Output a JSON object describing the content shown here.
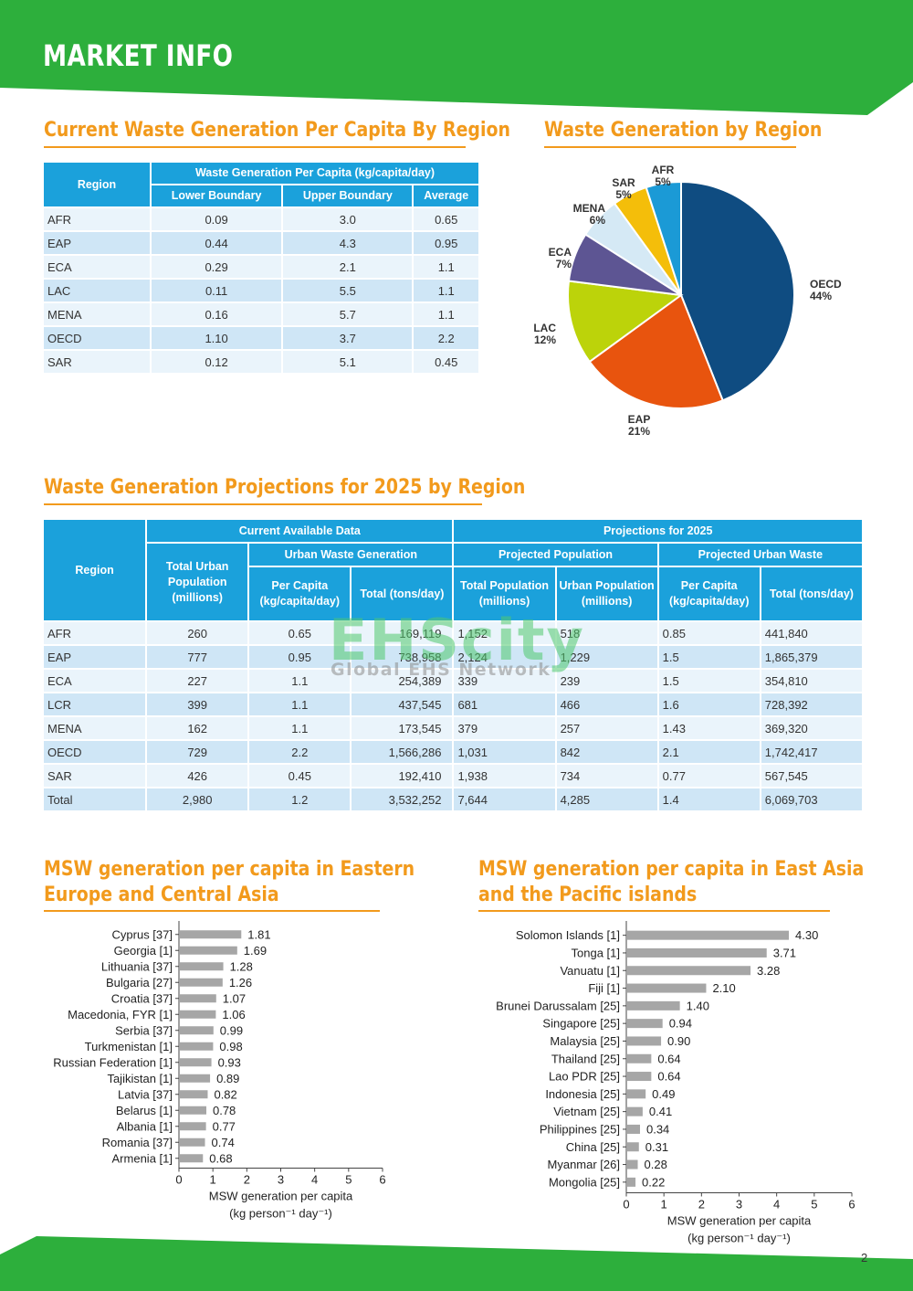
{
  "header": {
    "title": "MARKET INFO"
  },
  "colors": {
    "green": "#2DAF3C",
    "orange": "#F29A1C",
    "table_blue": "#1BA1DB",
    "bar_gray": "#A6A6A6"
  },
  "section1": {
    "title": "Current Waste Generation Per Capita By Region",
    "table": {
      "region_header": "Region",
      "group_header": "Waste Generation Per Capita (kg/capita/day)",
      "col_headers": [
        "Lower Boundary",
        "Upper Boundary",
        "Average"
      ],
      "rows": [
        [
          "AFR",
          "0.09",
          "3.0",
          "0.65"
        ],
        [
          "EAP",
          "0.44",
          "4.3",
          "0.95"
        ],
        [
          "ECA",
          "0.29",
          "2.1",
          "1.1"
        ],
        [
          "LAC",
          "0.11",
          "5.5",
          "1.1"
        ],
        [
          "MENA",
          "0.16",
          "5.7",
          "1.1"
        ],
        [
          "OECD",
          "1.10",
          "3.7",
          "2.2"
        ],
        [
          "SAR",
          "0.12",
          "5.1",
          "0.45"
        ]
      ]
    }
  },
  "section2": {
    "title": "Waste Generation by Region"
  },
  "section3": {
    "title": "Waste Generation Projections for 2025 by Region",
    "table": {
      "region_header": "Region",
      "group_current": "Current Available Data",
      "group_projection": "Projections for 2025",
      "total_urban_pop": "Total Urban Population (millions)",
      "sub_urban_waste": "Urban Waste Generation",
      "sub_proj_pop": "Projected Population",
      "sub_proj_waste": "Projected Urban Waste",
      "per_capita": "Per Capita (kg/capita/day)",
      "total_tons": "Total (tons/day)",
      "total_pop": "Total Population (millions)",
      "urban_pop": "Urban Population (millions)",
      "rows": [
        [
          "AFR",
          "260",
          "0.65",
          "169,119",
          "1,152",
          "518",
          "0.85",
          "441,840"
        ],
        [
          "EAP",
          "777",
          "0.95",
          "738,958",
          "2,124",
          "1,229",
          "1.5",
          "1,865,379"
        ],
        [
          "ECA",
          "227",
          "1.1",
          "254,389",
          "339",
          "239",
          "1.5",
          "354,810"
        ],
        [
          "LCR",
          "399",
          "1.1",
          "437,545",
          "681",
          "466",
          "1.6",
          "728,392"
        ],
        [
          "MENA",
          "162",
          "1.1",
          "173,545",
          "379",
          "257",
          "1.43",
          "369,320"
        ],
        [
          "OECD",
          "729",
          "2.2",
          "1,566,286",
          "1,031",
          "842",
          "2.1",
          "1,742,417"
        ],
        [
          "SAR",
          "426",
          "0.45",
          "192,410",
          "1,938",
          "734",
          "0.77",
          "567,545"
        ],
        [
          "Total",
          "2,980",
          "1.2",
          "3,532,252",
          "7,644",
          "4,285",
          "1.4",
          "6,069,703"
        ]
      ]
    }
  },
  "section4": {
    "title_line1": "MSW generation per capita in Eastern",
    "title_line2": "Europe and Central Asia"
  },
  "section5": {
    "title_line1": "MSW generation per capita in East Asia",
    "title_line2": "and the Pacific islands"
  },
  "watermark": {
    "big": "EHScity",
    "small": "Global EHS Network"
  },
  "page_number": "2",
  "chart_data": [
    {
      "type": "pie",
      "title": "Waste Generation by Region",
      "slices": [
        {
          "label": "OECD",
          "percent_label": "44%",
          "value": 44,
          "color": "#0F4C81"
        },
        {
          "label": "EAP",
          "percent_label": "21%",
          "value": 21,
          "color": "#E8540E"
        },
        {
          "label": "LAC",
          "percent_label": "12%",
          "value": 12,
          "color": "#BCD30A"
        },
        {
          "label": "ECA",
          "percent_label": "7%",
          "value": 7,
          "color": "#5D5593"
        },
        {
          "label": "MENA",
          "percent_label": "6%",
          "value": 6,
          "color": "#D5E9F5"
        },
        {
          "label": "SAR",
          "percent_label": "5%",
          "value": 5,
          "color": "#F4BE0A"
        },
        {
          "label": "AFR",
          "percent_label": "5%",
          "value": 5,
          "color": "#1B9AD6"
        }
      ]
    },
    {
      "type": "bar",
      "orientation": "horizontal",
      "categories": [
        "Cyprus [37]",
        "Georgia [1]",
        "Lithuania [37]",
        "Bulgaria [27]",
        "Croatia [37]",
        "Macedonia, FYR [1]",
        "Serbia [37]",
        "Turkmenistan [1]",
        "Russian Federation [1]",
        "Tajikistan [1]",
        "Latvia [37]",
        "Belarus [1]",
        "Albania [1]",
        "Romania [37]",
        "Armenia [1]"
      ],
      "values": [
        1.81,
        1.69,
        1.28,
        1.26,
        1.07,
        1.06,
        0.99,
        0.98,
        0.93,
        0.89,
        0.82,
        0.78,
        0.77,
        0.74,
        0.68
      ],
      "value_labels": [
        "1.81",
        "1.69",
        "1.28",
        "1.26",
        "1.07",
        "1.06",
        "0.99",
        "0.98",
        "0.93",
        "0.89",
        "0.82",
        "0.78",
        "0.77",
        "0.74",
        "0.68"
      ],
      "xlim": [
        0,
        6
      ],
      "xticks": [
        "0",
        "1",
        "2",
        "3",
        "4",
        "5",
        "6"
      ],
      "xlabel_line1": "MSW generation per capita",
      "xlabel_line2": "(kg person⁻¹ day⁻¹)"
    },
    {
      "type": "bar",
      "orientation": "horizontal",
      "categories": [
        "Solomon Islands [1]",
        "Tonga [1]",
        "Vanuatu [1]",
        "Fiji [1]",
        "Brunei Darussalam [25]",
        "Singapore [25]",
        "Malaysia [25]",
        "Thailand [25]",
        "Lao PDR [25]",
        "Indonesia [25]",
        "Vietnam [25]",
        "Philippines [25]",
        "China [25]",
        "Myanmar [26]",
        "Mongolia [25]"
      ],
      "values": [
        4.3,
        3.71,
        3.28,
        2.1,
        1.4,
        0.94,
        0.9,
        0.64,
        0.64,
        0.49,
        0.41,
        0.34,
        0.31,
        0.28,
        0.22
      ],
      "value_labels": [
        "4.30",
        "3.71",
        "3.28",
        "2.10",
        "1.40",
        "0.94",
        "0.90",
        "0.64",
        "0.64",
        "0.49",
        "0.41",
        "0.34",
        "0.31",
        "0.28",
        "0.22"
      ],
      "xlim": [
        0,
        6
      ],
      "xticks": [
        "0",
        "1",
        "2",
        "3",
        "4",
        "5",
        "6"
      ],
      "xlabel_line1": "MSW generation per capita",
      "xlabel_line2": "(kg person⁻¹ day⁻¹)"
    }
  ]
}
